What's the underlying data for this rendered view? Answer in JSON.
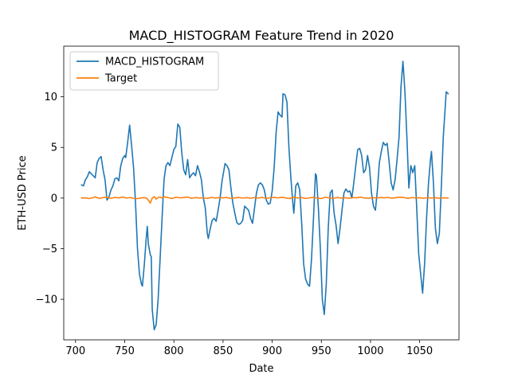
{
  "chart_data": {
    "type": "line",
    "title": "MACD_HISTOGRAM Feature Trend in 2020",
    "xlabel": "Date",
    "ylabel": "ETH-USD Price",
    "xlim": [
      688,
      1090
    ],
    "ylim": [
      -14,
      15
    ],
    "xticks": [
      700,
      750,
      800,
      850,
      900,
      950,
      1000,
      1050
    ],
    "yticks": [
      -10,
      -5,
      0,
      5,
      10
    ],
    "grid": false,
    "legend_position": "top-left",
    "series": [
      {
        "name": "MACD_HISTOGRAM",
        "color": "#1f77b4",
        "points": [
          [
            706,
            1.3
          ],
          [
            708,
            1.2
          ],
          [
            710,
            1.8
          ],
          [
            712,
            2.1
          ],
          [
            714,
            2.6
          ],
          [
            716,
            2.4
          ],
          [
            718,
            2.2
          ],
          [
            720,
            2.0
          ],
          [
            722,
            3.5
          ],
          [
            724,
            3.9
          ],
          [
            726,
            4.1
          ],
          [
            728,
            2.8
          ],
          [
            730,
            1.8
          ],
          [
            732,
            -0.2
          ],
          [
            734,
            0.1
          ],
          [
            736,
            0.8
          ],
          [
            738,
            1.2
          ],
          [
            740,
            1.9
          ],
          [
            742,
            2.0
          ],
          [
            744,
            1.7
          ],
          [
            746,
            3.2
          ],
          [
            748,
            3.9
          ],
          [
            750,
            4.2
          ],
          [
            751,
            4.0
          ],
          [
            753,
            5.5
          ],
          [
            755,
            7.2
          ],
          [
            757,
            5.2
          ],
          [
            759,
            3.0
          ],
          [
            761,
            -0.5
          ],
          [
            763,
            -5.0
          ],
          [
            765,
            -7.5
          ],
          [
            767,
            -8.5
          ],
          [
            768,
            -8.7
          ],
          [
            770,
            -6.5
          ],
          [
            772,
            -3.8
          ],
          [
            773,
            -2.8
          ],
          [
            774,
            -4.5
          ],
          [
            776,
            -5.6
          ],
          [
            777,
            -5.8
          ],
          [
            778,
            -11.0
          ],
          [
            780,
            -13.0
          ],
          [
            782,
            -12.5
          ],
          [
            784,
            -10.0
          ],
          [
            786,
            -6.0
          ],
          [
            788,
            -2.0
          ],
          [
            790,
            1.8
          ],
          [
            792,
            3.2
          ],
          [
            794,
            3.5
          ],
          [
            796,
            3.2
          ],
          [
            798,
            4.0
          ],
          [
            800,
            4.8
          ],
          [
            802,
            5.1
          ],
          [
            804,
            7.3
          ],
          [
            806,
            7.0
          ],
          [
            808,
            4.5
          ],
          [
            810,
            2.8
          ],
          [
            812,
            2.3
          ],
          [
            814,
            3.8
          ],
          [
            816,
            2.0
          ],
          [
            818,
            2.3
          ],
          [
            820,
            2.5
          ],
          [
            822,
            2.2
          ],
          [
            824,
            3.2
          ],
          [
            826,
            2.6
          ],
          [
            828,
            1.8
          ],
          [
            830,
            0.0
          ],
          [
            832,
            -1.0
          ],
          [
            834,
            -3.5
          ],
          [
            835,
            -4.0
          ],
          [
            837,
            -3.0
          ],
          [
            839,
            -2.2
          ],
          [
            841,
            -2.0
          ],
          [
            843,
            -2.3
          ],
          [
            845,
            -1.2
          ],
          [
            847,
            0.0
          ],
          [
            849,
            1.7
          ],
          [
            851,
            2.8
          ],
          [
            852,
            3.4
          ],
          [
            854,
            3.2
          ],
          [
            856,
            2.8
          ],
          [
            858,
            1.0
          ],
          [
            860,
            -0.5
          ],
          [
            862,
            -1.5
          ],
          [
            864,
            -2.4
          ],
          [
            866,
            -2.6
          ],
          [
            868,
            -2.5
          ],
          [
            870,
            -2.2
          ],
          [
            872,
            -0.8
          ],
          [
            874,
            -1.0
          ],
          [
            876,
            -1.2
          ],
          [
            878,
            -2.0
          ],
          [
            880,
            -2.5
          ],
          [
            882,
            -1.0
          ],
          [
            884,
            0.5
          ],
          [
            886,
            1.3
          ],
          [
            888,
            1.5
          ],
          [
            890,
            1.3
          ],
          [
            892,
            0.8
          ],
          [
            894,
            -0.2
          ],
          [
            896,
            -0.6
          ],
          [
            898,
            -0.5
          ],
          [
            900,
            0.7
          ],
          [
            902,
            3.0
          ],
          [
            904,
            6.5
          ],
          [
            906,
            8.5
          ],
          [
            908,
            8.2
          ],
          [
            910,
            8.0
          ],
          [
            911,
            10.3
          ],
          [
            913,
            10.2
          ],
          [
            915,
            9.5
          ],
          [
            917,
            5.0
          ],
          [
            919,
            2.0
          ],
          [
            921,
            -0.5
          ],
          [
            922,
            -1.5
          ],
          [
            924,
            1.2
          ],
          [
            926,
            1.5
          ],
          [
            928,
            0.8
          ],
          [
            930,
            -2.5
          ],
          [
            932,
            -6.5
          ],
          [
            934,
            -8.0
          ],
          [
            936,
            -8.5
          ],
          [
            938,
            -8.7
          ],
          [
            940,
            -6.0
          ],
          [
            942,
            -2.0
          ],
          [
            944,
            2.4
          ],
          [
            945,
            2.2
          ],
          [
            947,
            -1.0
          ],
          [
            949,
            -5.0
          ],
          [
            951,
            -10.0
          ],
          [
            953,
            -11.5
          ],
          [
            955,
            -8.5
          ],
          [
            957,
            -3.0
          ],
          [
            959,
            0.5
          ],
          [
            961,
            0.8
          ],
          [
            963,
            -1.5
          ],
          [
            965,
            -2.7
          ],
          [
            967,
            -4.5
          ],
          [
            969,
            -3.0
          ],
          [
            971,
            -1.2
          ],
          [
            973,
            0.5
          ],
          [
            975,
            0.9
          ],
          [
            977,
            0.6
          ],
          [
            979,
            0.7
          ],
          [
            981,
            0.0
          ],
          [
            983,
            1.5
          ],
          [
            985,
            3.2
          ],
          [
            987,
            4.8
          ],
          [
            989,
            4.9
          ],
          [
            991,
            4.2
          ],
          [
            993,
            2.5
          ],
          [
            995,
            2.8
          ],
          [
            997,
            4.2
          ],
          [
            999,
            3.0
          ],
          [
            1001,
            0.5
          ],
          [
            1003,
            -0.8
          ],
          [
            1005,
            -1.2
          ],
          [
            1007,
            0.8
          ],
          [
            1009,
            3.5
          ],
          [
            1011,
            4.6
          ],
          [
            1013,
            5.5
          ],
          [
            1015,
            5.2
          ],
          [
            1017,
            5.4
          ],
          [
            1019,
            3.5
          ],
          [
            1021,
            1.5
          ],
          [
            1023,
            0.8
          ],
          [
            1025,
            1.8
          ],
          [
            1027,
            3.8
          ],
          [
            1029,
            6.0
          ],
          [
            1031,
            11.0
          ],
          [
            1033,
            13.5
          ],
          [
            1035,
            10.5
          ],
          [
            1037,
            6.0
          ],
          [
            1039,
            1.0
          ],
          [
            1041,
            3.2
          ],
          [
            1043,
            2.5
          ],
          [
            1045,
            3.2
          ],
          [
            1047,
            -1.0
          ],
          [
            1049,
            -5.5
          ],
          [
            1051,
            -7.5
          ],
          [
            1053,
            -9.4
          ],
          [
            1055,
            -6.5
          ],
          [
            1057,
            -2.0
          ],
          [
            1059,
            1.5
          ],
          [
            1061,
            3.8
          ],
          [
            1062,
            4.6
          ],
          [
            1064,
            1.5
          ],
          [
            1066,
            -3.0
          ],
          [
            1068,
            -4.5
          ],
          [
            1070,
            -3.5
          ],
          [
            1072,
            1.0
          ],
          [
            1074,
            6.0
          ],
          [
            1076,
            9.0
          ],
          [
            1077,
            10.5
          ],
          [
            1079,
            10.3
          ]
        ]
      },
      {
        "name": "Target",
        "color": "#ff7f0e",
        "points": [
          [
            706,
            0.0
          ],
          [
            710,
            0.02
          ],
          [
            714,
            -0.05
          ],
          [
            718,
            0.05
          ],
          [
            720,
            0.12
          ],
          [
            724,
            -0.04
          ],
          [
            728,
            0.05
          ],
          [
            732,
            0.08
          ],
          [
            736,
            -0.03
          ],
          [
            740,
            0.06
          ],
          [
            744,
            0.02
          ],
          [
            748,
            0.1
          ],
          [
            752,
            0.0
          ],
          [
            756,
            0.05
          ],
          [
            760,
            -0.06
          ],
          [
            764,
            -0.04
          ],
          [
            768,
            0.03
          ],
          [
            772,
            0.02
          ],
          [
            774,
            -0.2
          ],
          [
            776,
            -0.5
          ],
          [
            778,
            0.0
          ],
          [
            780,
            0.15
          ],
          [
            782,
            -0.1
          ],
          [
            784,
            0.05
          ],
          [
            786,
            0.1
          ],
          [
            788,
            0.0
          ],
          [
            790,
            0.12
          ],
          [
            794,
            0.05
          ],
          [
            798,
            -0.05
          ],
          [
            802,
            0.08
          ],
          [
            806,
            0.02
          ],
          [
            810,
            0.05
          ],
          [
            814,
            0.1
          ],
          [
            818,
            -0.03
          ],
          [
            822,
            0.05
          ],
          [
            826,
            0.0
          ],
          [
            830,
            0.03
          ],
          [
            834,
            -0.04
          ],
          [
            838,
            0.06
          ],
          [
            842,
            0.0
          ],
          [
            846,
            0.04
          ],
          [
            850,
            0.02
          ],
          [
            854,
            0.05
          ],
          [
            858,
            -0.03
          ],
          [
            862,
            0.02
          ],
          [
            866,
            0.05
          ],
          [
            870,
            0.0
          ],
          [
            874,
            0.04
          ],
          [
            878,
            -0.02
          ],
          [
            882,
            0.05
          ],
          [
            886,
            0.0
          ],
          [
            890,
            0.06
          ],
          [
            894,
            -0.03
          ],
          [
            898,
            0.03
          ],
          [
            902,
            0.06
          ],
          [
            906,
            0.02
          ],
          [
            910,
            0.08
          ],
          [
            914,
            0.0
          ],
          [
            918,
            -0.05
          ],
          [
            922,
            0.1
          ],
          [
            926,
            0.0
          ],
          [
            930,
            0.05
          ],
          [
            934,
            -0.04
          ],
          [
            938,
            0.02
          ],
          [
            942,
            0.06
          ],
          [
            946,
            0.0
          ],
          [
            950,
            -0.05
          ],
          [
            954,
            0.08
          ],
          [
            958,
            0.02
          ],
          [
            962,
            -0.03
          ],
          [
            966,
            0.06
          ],
          [
            970,
            0.0
          ],
          [
            974,
            0.03
          ],
          [
            978,
            -0.02
          ],
          [
            982,
            0.05
          ],
          [
            986,
            0.02
          ],
          [
            990,
            0.1
          ],
          [
            994,
            0.0
          ],
          [
            998,
            -0.03
          ],
          [
            1002,
            0.05
          ],
          [
            1006,
            0.0
          ],
          [
            1010,
            0.05
          ],
          [
            1014,
            0.02
          ],
          [
            1018,
            0.06
          ],
          [
            1022,
            -0.02
          ],
          [
            1026,
            0.04
          ],
          [
            1030,
            0.08
          ],
          [
            1034,
            0.05
          ],
          [
            1038,
            -0.03
          ],
          [
            1042,
            0.05
          ],
          [
            1046,
            0.0
          ],
          [
            1050,
            0.03
          ],
          [
            1054,
            -0.02
          ],
          [
            1058,
            0.05
          ],
          [
            1062,
            0.0
          ],
          [
            1066,
            0.03
          ],
          [
            1070,
            -0.02
          ],
          [
            1074,
            0.02
          ],
          [
            1079,
            0.0
          ]
        ]
      }
    ]
  }
}
